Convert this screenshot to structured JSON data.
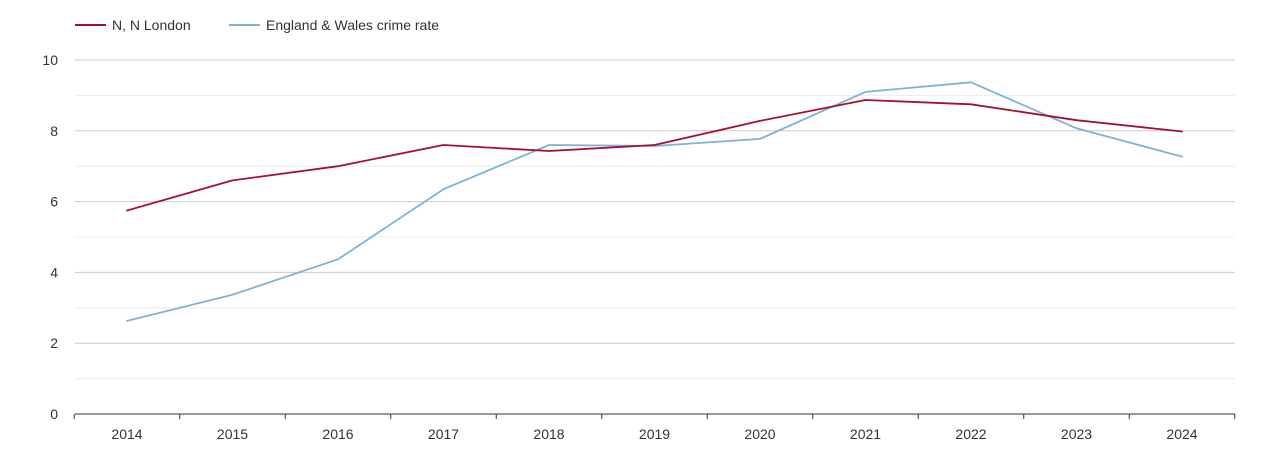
{
  "chart_data": {
    "type": "line",
    "title": "",
    "xlabel": "",
    "ylabel": "",
    "categories": [
      "2014",
      "2015",
      "2016",
      "2017",
      "2018",
      "2019",
      "2020",
      "2021",
      "2022",
      "2023",
      "2024"
    ],
    "ylim": [
      0,
      10
    ],
    "yticks": [
      0,
      2,
      4,
      6,
      8,
      10
    ],
    "grid": true,
    "legend_position": "top-left",
    "series": [
      {
        "name": "N, N London",
        "color": "#a50f31",
        "values": [
          5.75,
          6.6,
          7.0,
          7.6,
          7.43,
          7.6,
          8.28,
          8.87,
          8.75,
          8.3,
          7.98
        ]
      },
      {
        "name": "England & Wales crime rate",
        "color": "#7db3d4",
        "values": [
          2.63,
          3.37,
          4.37,
          6.35,
          7.6,
          7.57,
          7.77,
          9.1,
          9.37,
          8.07,
          7.27
        ]
      }
    ]
  }
}
